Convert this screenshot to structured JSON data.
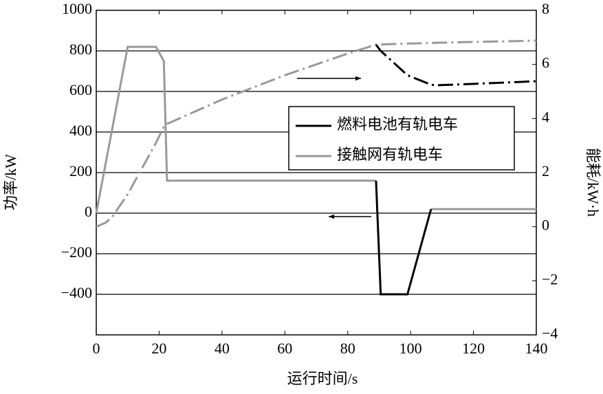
{
  "chart_data": {
    "type": "line",
    "x_label": "运行时间/s",
    "y_label": "功率/kW",
    "y2_label": "能耗/kW·h",
    "x": [
      0,
      3,
      5,
      10,
      19,
      21.5,
      22.5,
      40,
      60,
      80,
      89,
      90.5,
      99,
      106.5,
      108,
      120,
      140
    ],
    "series": [
      {
        "name": "燃料电池有轨电车",
        "color": "#000000",
        "power": [
          null,
          null,
          null,
          null,
          null,
          null,
          null,
          null,
          null,
          null,
          160,
          -400,
          -400,
          20,
          null,
          null,
          null
        ],
        "energy": [
          null,
          null,
          null,
          null,
          null,
          null,
          null,
          null,
          null,
          null,
          6.73,
          6.5,
          5.6,
          5.25,
          5.23,
          5.28,
          5.38
        ]
      },
      {
        "name": "接触网有轨电车",
        "color": "#999999",
        "power": [
          0,
          246,
          410,
          820,
          820,
          750,
          160,
          160,
          160,
          160,
          160,
          null,
          null,
          20,
          20,
          20,
          20
        ],
        "energy": [
          0,
          0.15,
          0.35,
          1.2,
          3.1,
          3.7,
          3.8,
          4.7,
          5.6,
          6.4,
          6.73,
          6.74,
          6.77,
          6.79,
          6.8,
          6.83,
          6.88
        ]
      }
    ],
    "energy_dash": "22,6,3,6",
    "xlim": [
      0,
      140
    ],
    "xticks": [
      0,
      20,
      40,
      60,
      80,
      100,
      120,
      140
    ],
    "ylim": [
      -600,
      1000
    ],
    "yticks": [
      {
        "value": -400,
        "label": "−400"
      },
      {
        "value": -200,
        "label": "−200"
      },
      0,
      200,
      400,
      600,
      800,
      1000
    ],
    "y2lim": [
      -4,
      8
    ],
    "y2ticks": [
      {
        "value": -4,
        "label": "−4"
      },
      {
        "value": -2,
        "label": "−2"
      },
      0,
      2,
      4,
      6,
      8
    ],
    "grid": true
  }
}
